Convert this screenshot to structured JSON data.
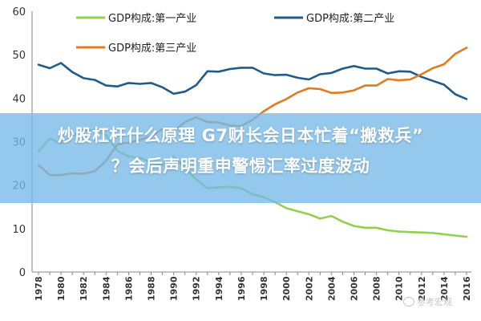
{
  "chart_data": {
    "type": "line",
    "title": "",
    "xlabel": "",
    "ylabel": "",
    "xlim": [
      1978,
      2016
    ],
    "ylim": [
      0,
      60
    ],
    "yticks": [
      0,
      10,
      20,
      30,
      40,
      50,
      60
    ],
    "xticks": [
      1978,
      1980,
      1982,
      1984,
      1986,
      1988,
      1990,
      1992,
      1994,
      1996,
      1998,
      2000,
      2002,
      2004,
      2006,
      2008,
      2010,
      2012,
      2014,
      2016
    ],
    "grid": false,
    "legend": "top",
    "x": [
      1978,
      1979,
      1980,
      1981,
      1982,
      1983,
      1984,
      1985,
      1986,
      1987,
      1988,
      1989,
      1990,
      1991,
      1992,
      1993,
      1994,
      1995,
      1996,
      1997,
      1998,
      1999,
      2000,
      2001,
      2002,
      2003,
      2004,
      2005,
      2006,
      2007,
      2008,
      2009,
      2010,
      2011,
      2012,
      2013,
      2014,
      2015,
      2016
    ],
    "series": [
      {
        "name": "GDP构成:第一产业",
        "color": "#92D050",
        "values": [
          27.7,
          30.7,
          29.6,
          31.3,
          32.8,
          32.6,
          31.5,
          27.9,
          26.6,
          26.3,
          25.2,
          24.6,
          26.6,
          24.0,
          21.3,
          19.3,
          19.5,
          19.6,
          19.3,
          17.9,
          17.2,
          16.1,
          14.7,
          14.0,
          13.3,
          12.3,
          12.9,
          11.6,
          10.6,
          10.2,
          10.2,
          9.6,
          9.3,
          9.2,
          9.1,
          9.0,
          8.7,
          8.4,
          8.1
        ]
      },
      {
        "name": "GDP构成:第二产业",
        "color": "#1F5C8B",
        "values": [
          47.7,
          46.9,
          48.1,
          46.0,
          44.6,
          44.2,
          42.9,
          42.7,
          43.5,
          43.3,
          43.5,
          42.5,
          41.0,
          41.5,
          43.0,
          46.2,
          46.1,
          46.7,
          47.0,
          47.0,
          45.7,
          45.3,
          45.4,
          44.7,
          44.3,
          45.5,
          45.8,
          46.8,
          47.4,
          46.8,
          46.8,
          45.7,
          46.2,
          46.1,
          44.9,
          44.0,
          43.1,
          40.9,
          39.8
        ]
      },
      {
        "name": "GDP构成:第三产业",
        "color": "#E07B22",
        "values": [
          24.6,
          22.3,
          22.3,
          22.7,
          22.6,
          23.2,
          25.6,
          29.4,
          29.8,
          30.4,
          31.2,
          32.9,
          32.4,
          34.5,
          35.6,
          34.5,
          34.4,
          33.7,
          33.6,
          35.0,
          37.0,
          38.6,
          39.8,
          41.3,
          42.3,
          42.1,
          41.2,
          41.3,
          41.8,
          42.9,
          42.9,
          44.4,
          44.1,
          44.3,
          45.5,
          46.9,
          47.8,
          50.2,
          51.6
        ]
      }
    ]
  },
  "overlay": {
    "title_line1": "炒股杠杆什么原理 G7财长会日本忙着“搬救兵”",
    "title_line2": "？会后声明重申警惕汇率过度波动"
  },
  "watermark": {
    "text": "参考宏观"
  }
}
